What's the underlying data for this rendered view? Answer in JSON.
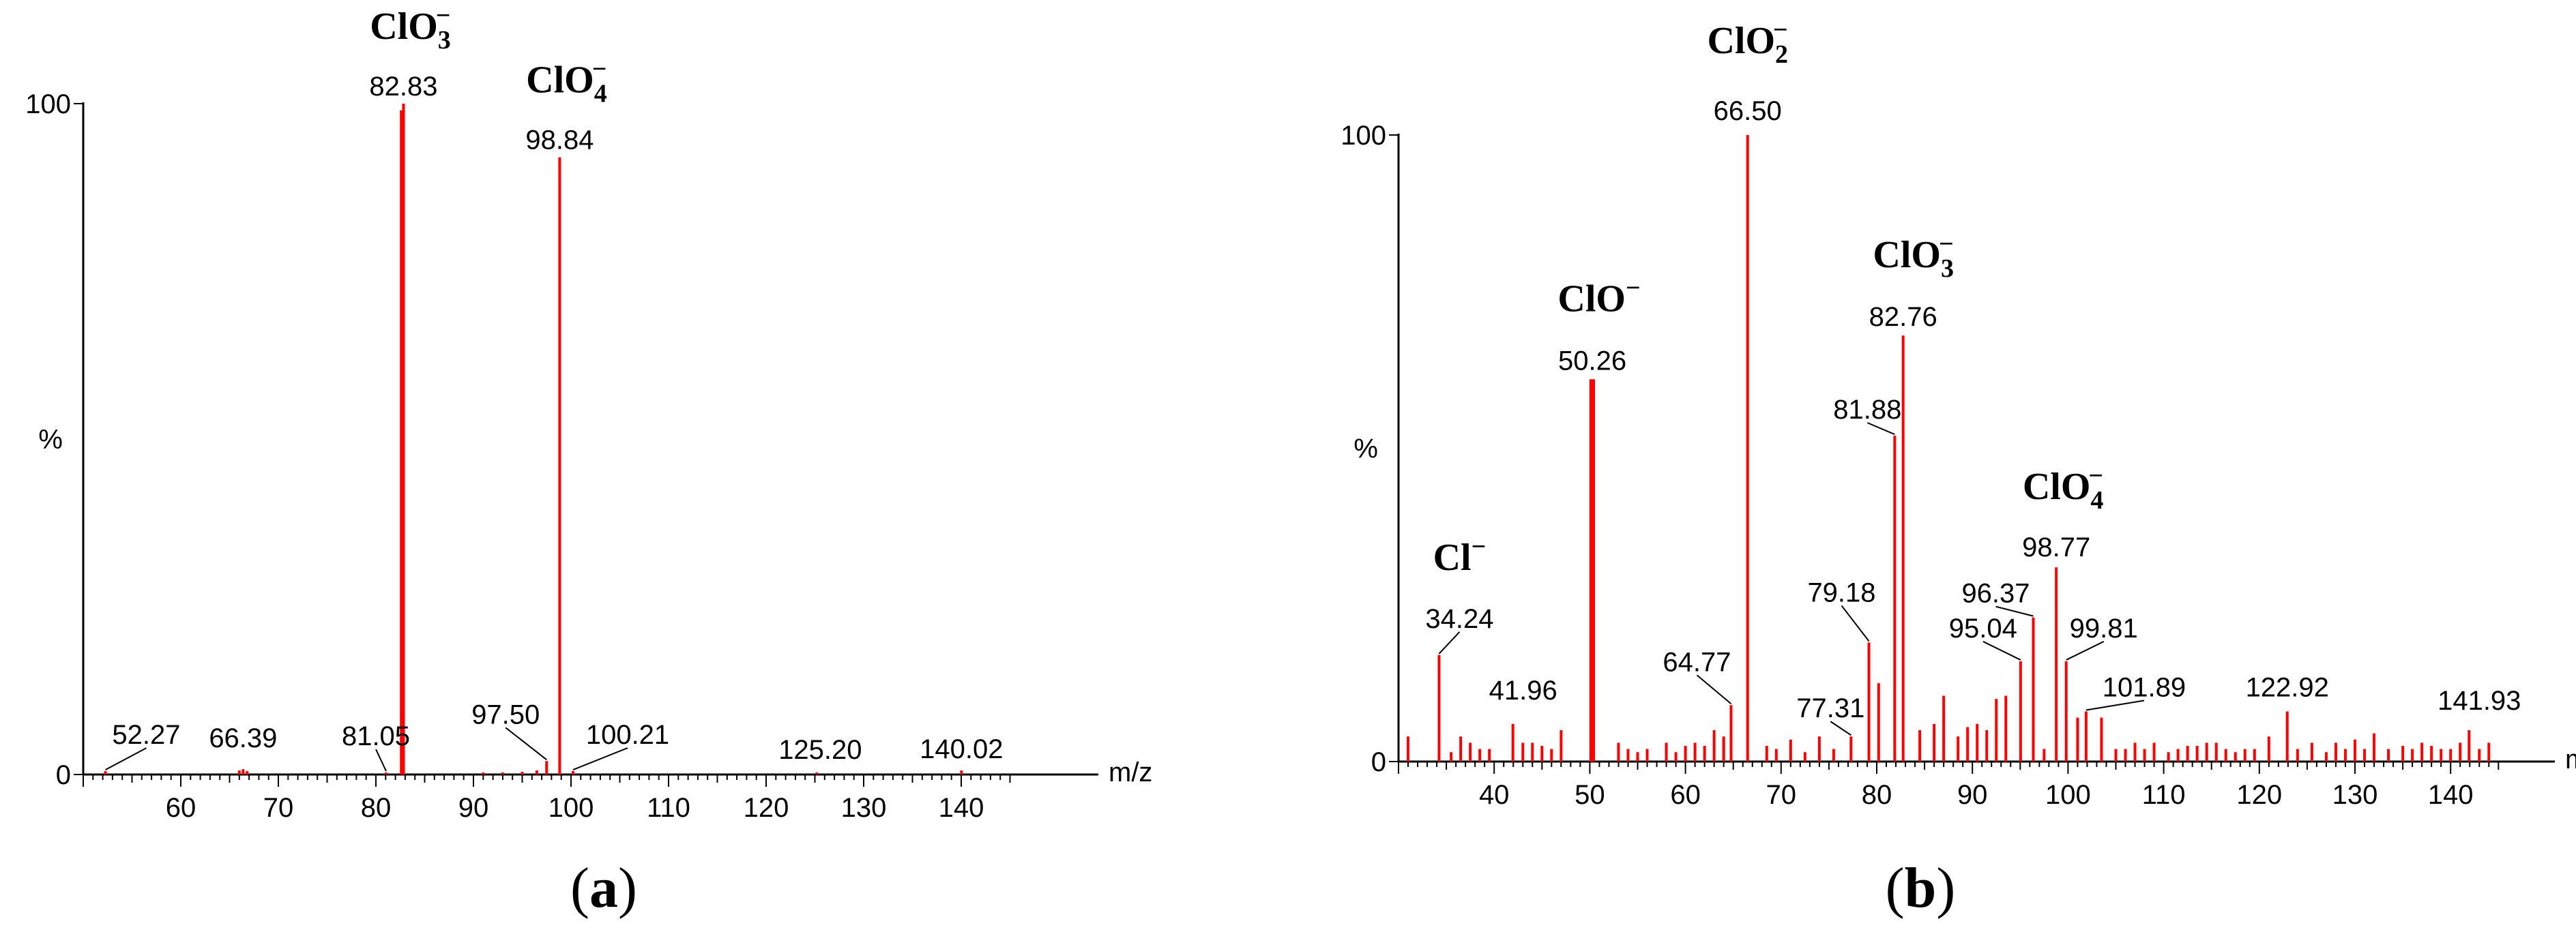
{
  "colors": {
    "peak": "#ff0000",
    "axis": "#000000",
    "text": "#000000"
  },
  "chart_data": [
    {
      "type": "bar",
      "panel_label": "a",
      "ylabel": "%",
      "xlabel": "m/z",
      "xlim": [
        50,
        145
      ],
      "ylim": [
        0,
        100
      ],
      "x_ticks": [
        60,
        70,
        80,
        90,
        100,
        110,
        120,
        130,
        140
      ],
      "y_ticks": [
        0,
        100
      ],
      "grid": false,
      "peak_labels": [
        {
          "x": 52.27,
          "y": 0.5,
          "text": "52.27"
        },
        {
          "x": 66.39,
          "y": 0.8,
          "text": "66.39"
        },
        {
          "x": 81.05,
          "y": 0.3,
          "text": "81.05"
        },
        {
          "x": 82.83,
          "y": 100,
          "text": "82.83"
        },
        {
          "x": 97.5,
          "y": 2,
          "text": "97.50"
        },
        {
          "x": 98.84,
          "y": 92,
          "text": "98.84"
        },
        {
          "x": 100.21,
          "y": 0.5,
          "text": "100.21"
        },
        {
          "x": 125.2,
          "y": 0.3,
          "text": "125.20"
        },
        {
          "x": 140.02,
          "y": 0.6,
          "text": "140.02"
        }
      ],
      "ion_labels": [
        {
          "formula": "ClO",
          "sub": "3",
          "sup": "−",
          "at_peak": 82.83
        },
        {
          "formula": "ClO",
          "sub": "4",
          "sup": "−",
          "at_peak": 98.84
        }
      ],
      "peaks": [
        {
          "x": 52.27,
          "y": 0.5
        },
        {
          "x": 66.0,
          "y": 0.6
        },
        {
          "x": 66.39,
          "y": 0.8
        },
        {
          "x": 66.8,
          "y": 0.5
        },
        {
          "x": 81.05,
          "y": 0.3
        },
        {
          "x": 82.6,
          "y": 99
        },
        {
          "x": 82.83,
          "y": 100
        },
        {
          "x": 91.0,
          "y": 0.3
        },
        {
          "x": 93.0,
          "y": 0.3
        },
        {
          "x": 95.0,
          "y": 0.4
        },
        {
          "x": 96.5,
          "y": 0.6
        },
        {
          "x": 97.5,
          "y": 2
        },
        {
          "x": 98.84,
          "y": 92
        },
        {
          "x": 100.21,
          "y": 0.5
        },
        {
          "x": 125.2,
          "y": 0.3
        },
        {
          "x": 140.02,
          "y": 0.6
        }
      ]
    },
    {
      "type": "bar",
      "panel_label": "b",
      "ylabel": "%",
      "xlabel": "m/z",
      "xlim": [
        30,
        145
      ],
      "ylim": [
        0,
        100
      ],
      "x_ticks": [
        40,
        50,
        60,
        70,
        80,
        90,
        100,
        110,
        120,
        130,
        140
      ],
      "y_ticks": [
        0,
        100
      ],
      "grid": false,
      "peak_labels": [
        {
          "x": 34.24,
          "y": 17,
          "text": "34.24"
        },
        {
          "x": 41.96,
          "y": 6,
          "text": "41.96"
        },
        {
          "x": 50.26,
          "y": 61,
          "text": "50.26"
        },
        {
          "x": 64.77,
          "y": 9,
          "text": "64.77"
        },
        {
          "x": 66.5,
          "y": 100,
          "text": "66.50"
        },
        {
          "x": 77.31,
          "y": 4,
          "text": "77.31"
        },
        {
          "x": 79.18,
          "y": 19,
          "text": "79.18"
        },
        {
          "x": 81.88,
          "y": 52,
          "text": "81.88"
        },
        {
          "x": 82.76,
          "y": 68,
          "text": "82.76"
        },
        {
          "x": 95.04,
          "y": 16,
          "text": "95.04"
        },
        {
          "x": 96.37,
          "y": 23,
          "text": "96.37"
        },
        {
          "x": 98.77,
          "y": 31,
          "text": "98.77"
        },
        {
          "x": 99.81,
          "y": 16,
          "text": "99.81"
        },
        {
          "x": 101.89,
          "y": 8,
          "text": "101.89"
        },
        {
          "x": 122.92,
          "y": 8,
          "text": "122.92"
        },
        {
          "x": 141.93,
          "y": 5,
          "text": "141.93"
        }
      ],
      "ion_labels": [
        {
          "formula": "Cl",
          "sub": "",
          "sup": "−",
          "at_peak": 34.24
        },
        {
          "formula": "ClO",
          "sub": "",
          "sup": "−",
          "at_peak": 50.26
        },
        {
          "formula": "ClO",
          "sub": "2",
          "sup": "−",
          "at_peak": 66.5
        },
        {
          "formula": "ClO",
          "sub": "3",
          "sup": "−",
          "at_peak": 82.76
        },
        {
          "formula": "ClO",
          "sub": "4",
          "sup": "−",
          "at_peak": 98.77
        }
      ],
      "peaks": [
        {
          "x": 31.0,
          "y": 4
        },
        {
          "x": 34.24,
          "y": 17
        },
        {
          "x": 35.5,
          "y": 1.5
        },
        {
          "x": 36.5,
          "y": 4
        },
        {
          "x": 37.5,
          "y": 3
        },
        {
          "x": 38.5,
          "y": 2
        },
        {
          "x": 39.5,
          "y": 2
        },
        {
          "x": 41.96,
          "y": 6
        },
        {
          "x": 43.0,
          "y": 3
        },
        {
          "x": 44.0,
          "y": 3
        },
        {
          "x": 45.0,
          "y": 2.5
        },
        {
          "x": 46.0,
          "y": 2
        },
        {
          "x": 47.0,
          "y": 5
        },
        {
          "x": 50.1,
          "y": 61
        },
        {
          "x": 50.26,
          "y": 61
        },
        {
          "x": 50.4,
          "y": 61
        },
        {
          "x": 53.0,
          "y": 3
        },
        {
          "x": 54.0,
          "y": 2
        },
        {
          "x": 55.0,
          "y": 1.5
        },
        {
          "x": 56.0,
          "y": 2
        },
        {
          "x": 58.0,
          "y": 3
        },
        {
          "x": 59.0,
          "y": 1.5
        },
        {
          "x": 60.0,
          "y": 2.5
        },
        {
          "x": 61.0,
          "y": 3
        },
        {
          "x": 62.0,
          "y": 2.5
        },
        {
          "x": 63.0,
          "y": 5
        },
        {
          "x": 64.0,
          "y": 4
        },
        {
          "x": 64.77,
          "y": 9
        },
        {
          "x": 66.5,
          "y": 100
        },
        {
          "x": 68.5,
          "y": 2.5
        },
        {
          "x": 69.5,
          "y": 2
        },
        {
          "x": 71.0,
          "y": 3.5
        },
        {
          "x": 72.5,
          "y": 1.5
        },
        {
          "x": 74.0,
          "y": 4
        },
        {
          "x": 75.5,
          "y": 2
        },
        {
          "x": 77.31,
          "y": 4
        },
        {
          "x": 79.18,
          "y": 19
        },
        {
          "x": 80.2,
          "y": 12.5
        },
        {
          "x": 81.88,
          "y": 52
        },
        {
          "x": 82.76,
          "y": 68
        },
        {
          "x": 84.5,
          "y": 5
        },
        {
          "x": 86.0,
          "y": 6
        },
        {
          "x": 87.0,
          "y": 10.5
        },
        {
          "x": 88.5,
          "y": 4
        },
        {
          "x": 89.5,
          "y": 5.5
        },
        {
          "x": 90.5,
          "y": 6
        },
        {
          "x": 91.5,
          "y": 5
        },
        {
          "x": 92.5,
          "y": 10
        },
        {
          "x": 93.5,
          "y": 10.5
        },
        {
          "x": 95.04,
          "y": 16
        },
        {
          "x": 96.37,
          "y": 23
        },
        {
          "x": 97.5,
          "y": 2
        },
        {
          "x": 98.77,
          "y": 31
        },
        {
          "x": 99.81,
          "y": 16
        },
        {
          "x": 101.0,
          "y": 7
        },
        {
          "x": 101.89,
          "y": 8
        },
        {
          "x": 103.5,
          "y": 7
        },
        {
          "x": 105.0,
          "y": 2
        },
        {
          "x": 106.0,
          "y": 2
        },
        {
          "x": 107.0,
          "y": 3
        },
        {
          "x": 108.0,
          "y": 2
        },
        {
          "x": 109.0,
          "y": 3
        },
        {
          "x": 110.5,
          "y": 1.5
        },
        {
          "x": 111.5,
          "y": 2
        },
        {
          "x": 112.5,
          "y": 2.5
        },
        {
          "x": 113.5,
          "y": 2.5
        },
        {
          "x": 114.5,
          "y": 3
        },
        {
          "x": 115.5,
          "y": 3
        },
        {
          "x": 116.5,
          "y": 2
        },
        {
          "x": 117.5,
          "y": 1.5
        },
        {
          "x": 118.5,
          "y": 2
        },
        {
          "x": 119.5,
          "y": 2
        },
        {
          "x": 121.0,
          "y": 4
        },
        {
          "x": 122.92,
          "y": 8
        },
        {
          "x": 124.0,
          "y": 2
        },
        {
          "x": 125.5,
          "y": 3
        },
        {
          "x": 127.0,
          "y": 1.5
        },
        {
          "x": 128.0,
          "y": 3
        },
        {
          "x": 129.0,
          "y": 2
        },
        {
          "x": 130.0,
          "y": 3.5
        },
        {
          "x": 131.0,
          "y": 2
        },
        {
          "x": 132.0,
          "y": 4.5
        },
        {
          "x": 133.5,
          "y": 2
        },
        {
          "x": 135.0,
          "y": 2.5
        },
        {
          "x": 136.0,
          "y": 2
        },
        {
          "x": 137.0,
          "y": 3
        },
        {
          "x": 138.0,
          "y": 2.5
        },
        {
          "x": 139.0,
          "y": 2
        },
        {
          "x": 140.0,
          "y": 2
        },
        {
          "x": 141.0,
          "y": 3
        },
        {
          "x": 141.93,
          "y": 5
        },
        {
          "x": 143.0,
          "y": 2
        },
        {
          "x": 144.0,
          "y": 3
        }
      ]
    }
  ]
}
